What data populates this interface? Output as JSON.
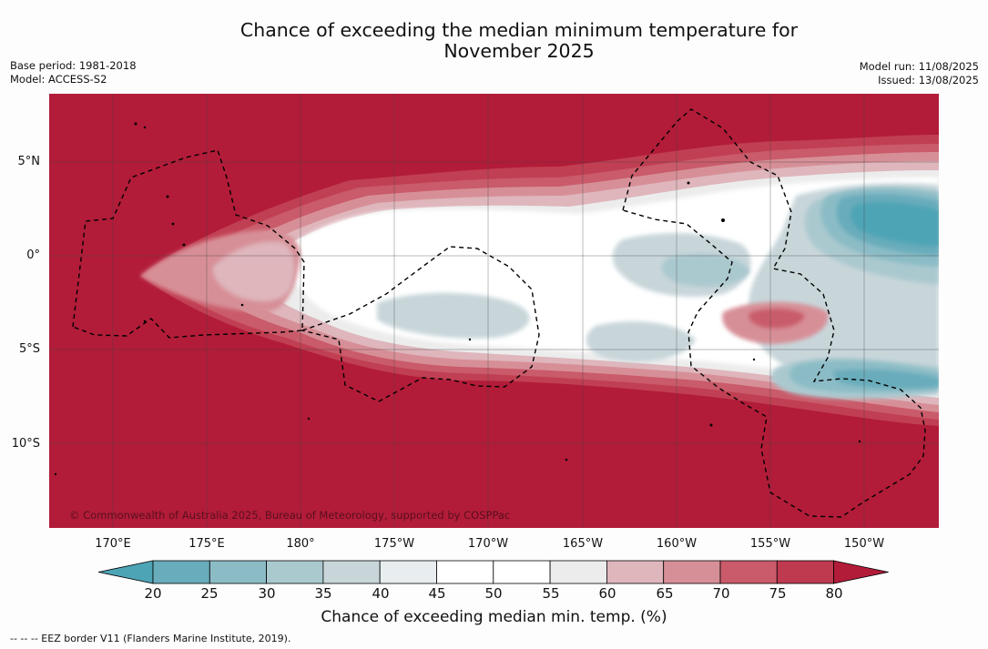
{
  "header": {
    "title_line1": "Chance of exceeding the median minimum temperature for",
    "title_line2": "November 2025",
    "base_period": "Base period: 1981-2018",
    "model": "Model: ACCESS-S2",
    "model_run": "Model run: 11/08/2025",
    "issued": "Issued: 13/08/2025"
  },
  "map": {
    "lat_labels": [
      "5°N",
      "0°",
      "5°S",
      "10°S"
    ],
    "lon_labels": [
      "170°E",
      "175°E",
      "180°",
      "175°W",
      "170°W",
      "165°W",
      "160°W",
      "155°W",
      "150°W"
    ],
    "copyright": "© Commonwealth of Australia 2025, Bureau of Meteorology, supported by COSPPac",
    "background_color": "#b21c39"
  },
  "colorbar": {
    "ticks": [
      "20",
      "25",
      "30",
      "35",
      "40",
      "45",
      "50",
      "55",
      "60",
      "65",
      "70",
      "75",
      "80"
    ],
    "colors": [
      "#4da4b5",
      "#69acbb",
      "#8bbcc6",
      "#aac9cf",
      "#c8d6da",
      "#e8eef0",
      "#ffffff",
      "#ffffff",
      "#ececec",
      "#deb6bc",
      "#d78f97",
      "#c95b6a",
      "#bf3a4f",
      "#b21c39"
    ],
    "label": "Chance of exceeding median min. temp. (%)"
  },
  "footnote": "--  --  -- EEZ border V11 (Flanders Marine Institute, 2019)."
}
